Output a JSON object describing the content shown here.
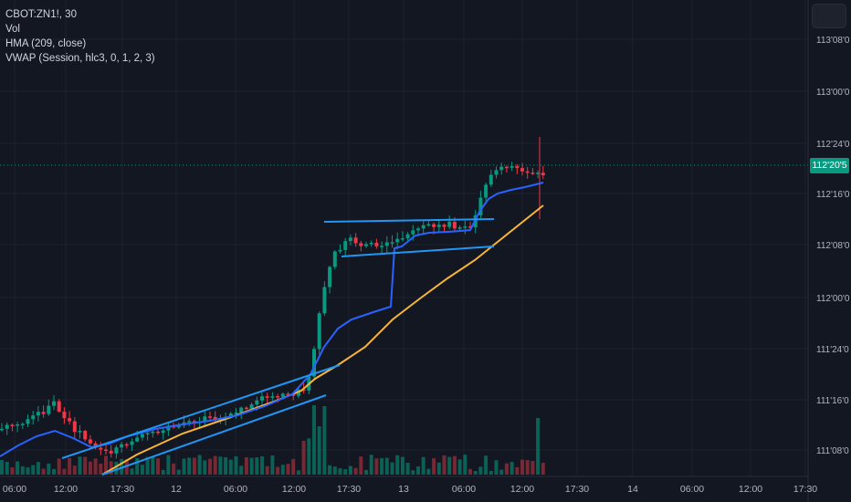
{
  "legend": {
    "symbol": "CBOT:ZN1!, 30",
    "volume": "Vol",
    "hma": "HMA (209, close)",
    "vwap": "VWAP (Session, hlc3, 0, 1, 2, 3)"
  },
  "last_price": "112'20'5",
  "colors": {
    "background": "#131722",
    "up": "#089981",
    "down": "#f23645",
    "hma": "#2962ff",
    "vwap": "#f7b538",
    "trendline": "#2196f3",
    "price_line": "#089981"
  },
  "chart_data": {
    "type": "candlestick",
    "price_axis_ticks": [
      "113'08'0",
      "113'00'0",
      "112'24'0",
      "112'16'0",
      "112'08'0",
      "112'00'0",
      "111'24'0",
      "111'16'0",
      "111'08'0"
    ],
    "time_axis_ticks": [
      "06:00",
      "12:00",
      "17:30",
      "12",
      "06:00",
      "12:00",
      "17:30",
      "13",
      "06:00",
      "12:00",
      "17:30",
      "14",
      "06:00",
      "12:00",
      "17:30"
    ],
    "y_range": [
      111.1,
      113.35
    ],
    "last_price_value": 112.64,
    "grid": true
  }
}
